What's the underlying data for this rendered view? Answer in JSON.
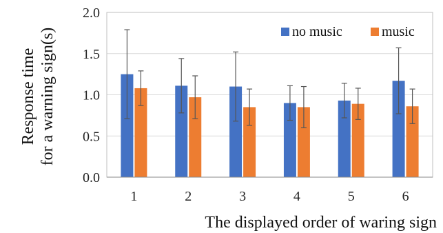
{
  "chart_data": {
    "type": "bar",
    "title": "",
    "xlabel": "The displayed order of waring sign",
    "ylabel_lines": [
      "Response time",
      "for a warning sign(s)"
    ],
    "categories": [
      "1",
      "2",
      "3",
      "4",
      "5",
      "6"
    ],
    "ylim": [
      0,
      2.0
    ],
    "yticks": [
      "0.0",
      "0.5",
      "1.0",
      "1.5",
      "2.0"
    ],
    "grid": true,
    "legend_position": "top-right",
    "series": [
      {
        "name": "no music",
        "color": "#4472C4",
        "values": [
          1.25,
          1.11,
          1.1,
          0.9,
          0.93,
          1.17
        ],
        "error": [
          0.54,
          0.33,
          0.42,
          0.21,
          0.21,
          0.4
        ]
      },
      {
        "name": "music",
        "color": "#ED7D31",
        "values": [
          1.08,
          0.97,
          0.85,
          0.85,
          0.89,
          0.86
        ],
        "error": [
          0.21,
          0.26,
          0.22,
          0.25,
          0.19,
          0.21
        ]
      }
    ]
  }
}
